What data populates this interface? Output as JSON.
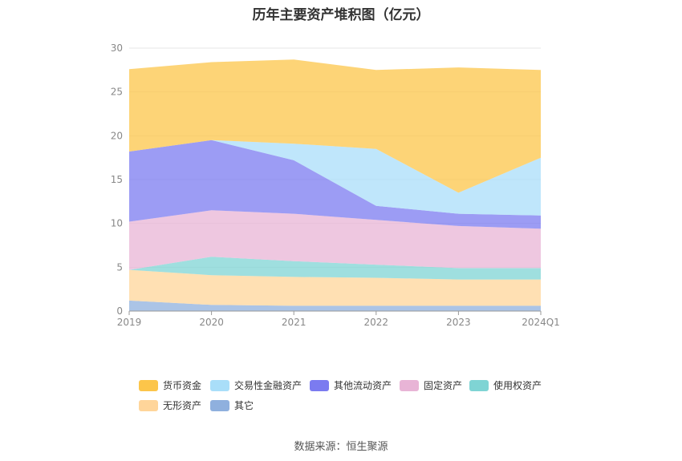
{
  "title": "历年主要资产堆积图（亿元）",
  "source": "数据来源：恒生聚源",
  "chart_data": {
    "type": "area",
    "stacked": true,
    "categories": [
      "2019",
      "2020",
      "2021",
      "2022",
      "2023",
      "2024Q1"
    ],
    "ylim": [
      0,
      30
    ],
    "yticks": [
      0,
      5,
      10,
      15,
      20,
      25,
      30
    ],
    "grid": true,
    "legend_position": "bottom",
    "series": [
      {
        "name": "其它",
        "color": "#8fb0de",
        "values": [
          1.2,
          0.7,
          0.6,
          0.6,
          0.6,
          0.6
        ]
      },
      {
        "name": "无形资产",
        "color": "#ffd59a",
        "values": [
          3.5,
          3.4,
          3.3,
          3.2,
          3.0,
          3.0
        ]
      },
      {
        "name": "使用权资产",
        "color": "#7fd4d4",
        "values": [
          0.0,
          2.1,
          1.8,
          1.5,
          1.3,
          1.3
        ]
      },
      {
        "name": "固定资产",
        "color": "#e8b4d6",
        "values": [
          5.5,
          5.3,
          5.4,
          5.1,
          4.8,
          4.5
        ]
      },
      {
        "name": "其他流动资产",
        "color": "#7b7bf0",
        "values": [
          8.0,
          8.0,
          6.1,
          1.6,
          1.4,
          1.5
        ]
      },
      {
        "name": "交易性金融资产",
        "color": "#a9def9",
        "values": [
          0.0,
          0.0,
          1.9,
          6.5,
          2.4,
          6.6
        ]
      },
      {
        "name": "货币资金",
        "color": "#fcc54a",
        "values": [
          9.4,
          8.9,
          9.6,
          9.0,
          14.3,
          10.0
        ]
      }
    ],
    "legend_order": [
      "货币资金",
      "交易性金融资产",
      "其他流动资产",
      "固定资产",
      "使用权资产",
      "无形资产",
      "其它"
    ]
  }
}
